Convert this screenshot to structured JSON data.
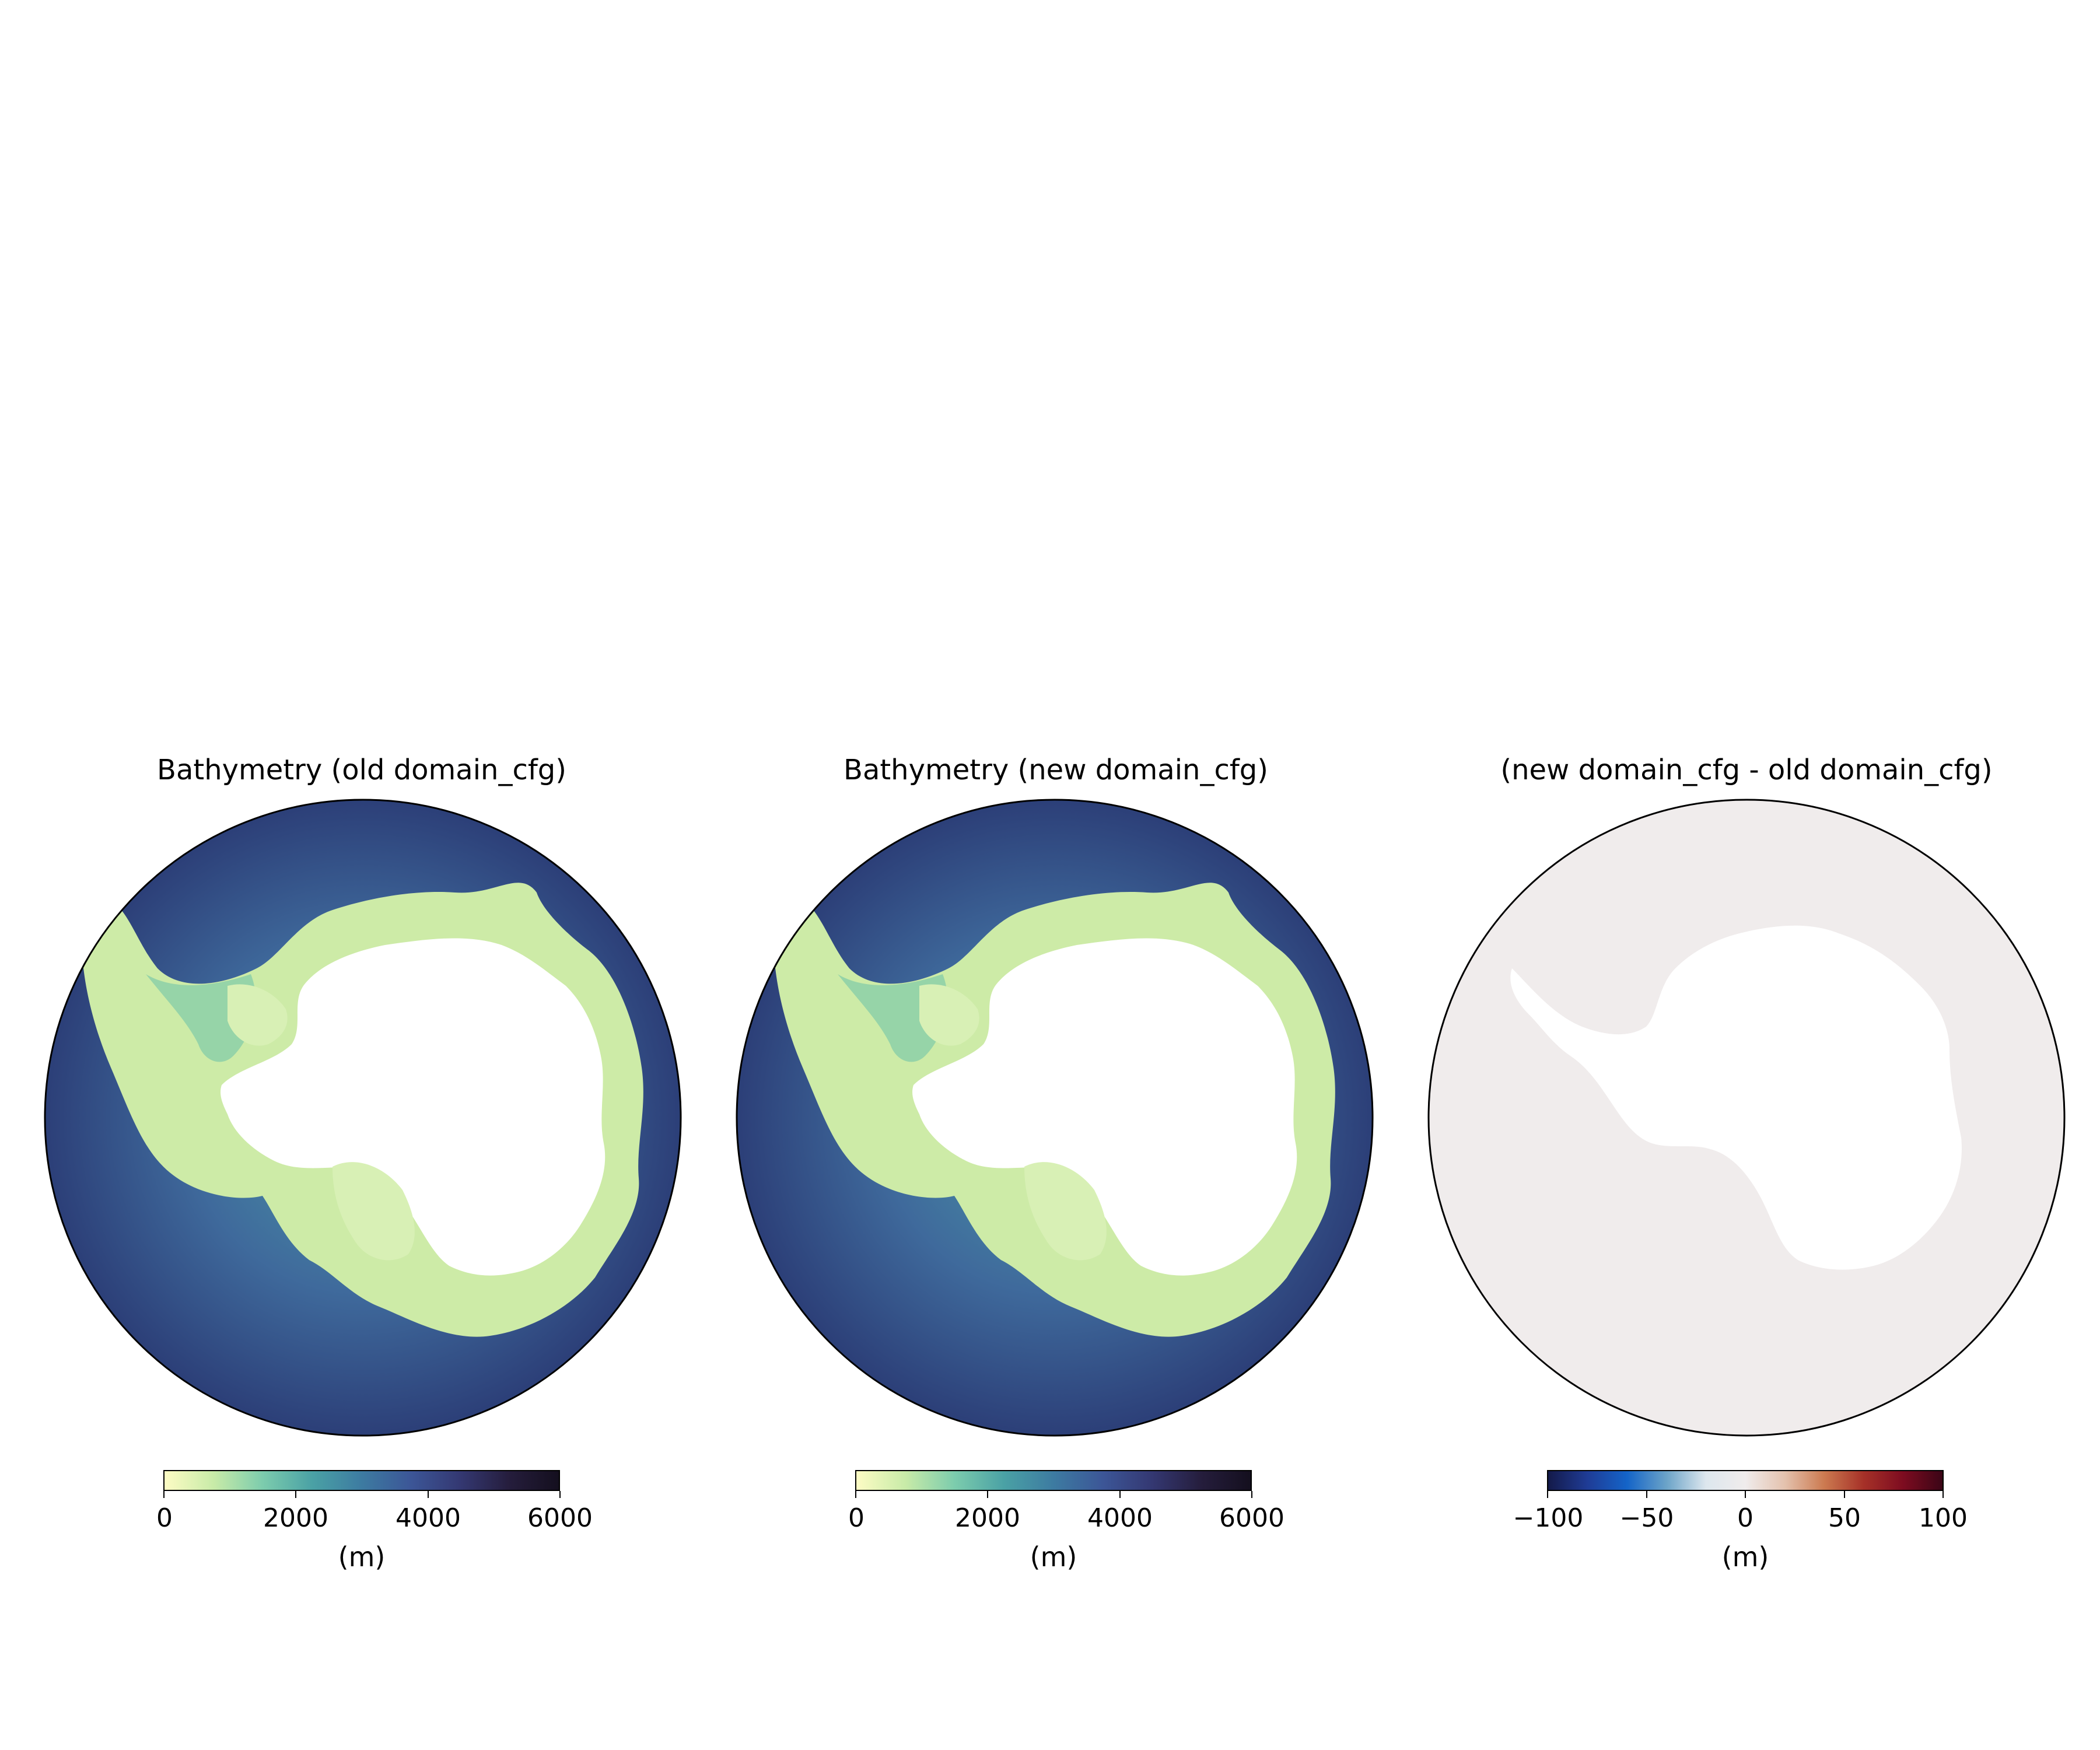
{
  "panels": [
    {
      "title": "Bathymetry (old domain_cfg)",
      "colorbar": {
        "ticks": [
          "0",
          "2000",
          "4000",
          "6000"
        ],
        "min": 0,
        "max": 6000,
        "unit": "(m)"
      }
    },
    {
      "title": "Bathymetry (new domain_cfg)",
      "colorbar": {
        "ticks": [
          "0",
          "2000",
          "4000",
          "6000"
        ],
        "min": 0,
        "max": 6000,
        "unit": "(m)"
      }
    },
    {
      "title": "(new domain_cfg - old domain_cfg)",
      "colorbar": {
        "ticks": [
          "−100",
          "−50",
          "0",
          "50",
          "100"
        ],
        "min": -100,
        "max": 100,
        "unit": "(m)"
      }
    }
  ],
  "colors": {
    "deep_cmap": [
      "#fdfcc4",
      "#c8eba8",
      "#7cccad",
      "#4aa1a5",
      "#3d7ba1",
      "#3c5697",
      "#343872",
      "#251d3c",
      "#140f1e"
    ],
    "diff_cmap": [
      "#141a4a",
      "#1f3c96",
      "#1464c8",
      "#6ba3c8",
      "#dde7ee",
      "#f0ecec",
      "#e4c2ae",
      "#cc7a50",
      "#a63128",
      "#7d0c20",
      "#3b0516"
    ],
    "ocean_deep": "#2e4781",
    "ocean_mid": "#3f6499",
    "shelf": "#d6efb0",
    "land": "#ffffff",
    "diff_ocean": "#f0ecec"
  }
}
